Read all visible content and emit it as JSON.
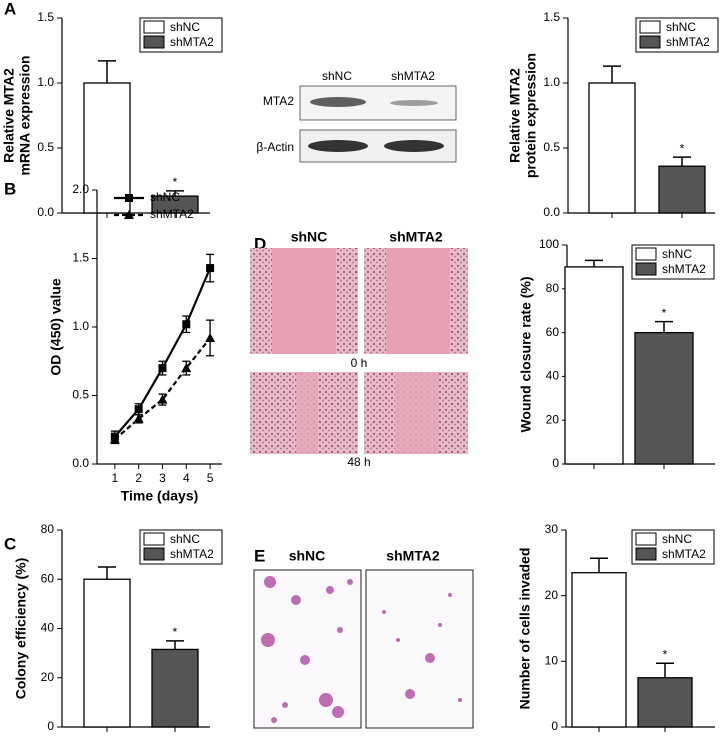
{
  "panel_labels": [
    "A",
    "B",
    "C",
    "D",
    "E"
  ],
  "blot": {
    "lanes": [
      "shNC",
      "shMTA2"
    ],
    "rows": [
      "MTA2",
      "β-Actin"
    ]
  },
  "wound": {
    "columns": [
      "shNC",
      "shMTA2"
    ],
    "rows": [
      "0 h",
      "48 h"
    ]
  },
  "invasion": {
    "columns": [
      "shNC",
      "shMTA2"
    ]
  },
  "chart_data": [
    {
      "type": "bar",
      "ylabel": [
        "Relative MTA2",
        "mRNA expression"
      ],
      "categories": [
        "shNC",
        "shMTA2"
      ],
      "values": [
        1.0,
        0.13
      ],
      "errors": [
        0.17,
        0.04
      ],
      "colors": [
        "#ffffff",
        "#555555"
      ],
      "annotation": "*",
      "ylim": [
        0,
        1.5
      ],
      "yticks": [
        {
          "value": 0,
          "label": "0.0"
        },
        0.5,
        {
          "value": 1,
          "label": "1.0"
        },
        1.5
      ]
    },
    {
      "type": "bar",
      "ylabel": [
        "Relative MTA2",
        "protein expression"
      ],
      "categories": [
        "shNC",
        "shMTA2"
      ],
      "values": [
        1.0,
        0.36
      ],
      "errors": [
        0.13,
        0.07
      ],
      "colors": [
        "#ffffff",
        "#555555"
      ],
      "annotation": "*",
      "ylim": [
        0,
        1.5
      ],
      "yticks": [
        {
          "value": 0,
          "label": "0.0"
        },
        0.5,
        {
          "value": 1,
          "label": "1.0"
        },
        1.5
      ]
    },
    {
      "type": "line",
      "ylabel": [
        "OD (450) value"
      ],
      "xlabel": "Time (days)",
      "x": [
        1,
        2,
        3,
        4,
        5
      ],
      "series": [
        {
          "name": "shNC",
          "color": "#000000",
          "marker": "square",
          "dashed": false,
          "values": [
            0.2,
            0.4,
            0.7,
            1.02,
            1.43
          ],
          "errors": [
            0.04,
            0.04,
            0.05,
            0.06,
            0.1
          ]
        },
        {
          "name": "shMTA2",
          "color": "#000000",
          "marker": "triangle",
          "dashed": true,
          "values": [
            0.18,
            0.33,
            0.47,
            0.7,
            0.92
          ],
          "errors": [
            0.03,
            0.03,
            0.04,
            0.05,
            0.13
          ]
        }
      ],
      "xlim": [
        0.25,
        5.5
      ],
      "xticks": [
        1,
        2,
        3,
        4,
        5
      ],
      "ylim": [
        0,
        2
      ],
      "yticks": [
        {
          "value": 0,
          "label": "0.0"
        },
        0.5,
        {
          "value": 1,
          "label": "1.0"
        },
        1.5,
        {
          "value": 2,
          "label": "2.0"
        }
      ]
    },
    {
      "type": "bar",
      "ylabel": [
        "Wound closure rate (%)"
      ],
      "categories": [
        "shNC",
        "shMTA2"
      ],
      "values": [
        90,
        60
      ],
      "errors": [
        3,
        5
      ],
      "colors": [
        "#ffffff",
        "#555555"
      ],
      "annotation": "*",
      "ylim": [
        0,
        100
      ],
      "yticks": [
        0,
        20,
        40,
        60,
        80,
        100
      ]
    },
    {
      "type": "bar",
      "ylabel": [
        "Colony efficiency (%)"
      ],
      "categories": [
        "shNC",
        "shMTA2"
      ],
      "values": [
        60,
        31.5
      ],
      "errors": [
        5,
        3.5
      ],
      "colors": [
        "#ffffff",
        "#555555"
      ],
      "annotation": "*",
      "ylim": [
        0,
        80
      ],
      "yticks": [
        0,
        20,
        40,
        60,
        80
      ]
    },
    {
      "type": "bar",
      "ylabel": [
        "Number of cells invaded"
      ],
      "categories": [
        "shNC",
        "shMTA2"
      ],
      "values": [
        23.5,
        7.5
      ],
      "errors": [
        2.2,
        2.2
      ],
      "colors": [
        "#ffffff",
        "#555555"
      ],
      "annotation": "*",
      "ylim": [
        0,
        30
      ],
      "yticks": [
        0,
        10,
        20,
        30
      ]
    }
  ]
}
